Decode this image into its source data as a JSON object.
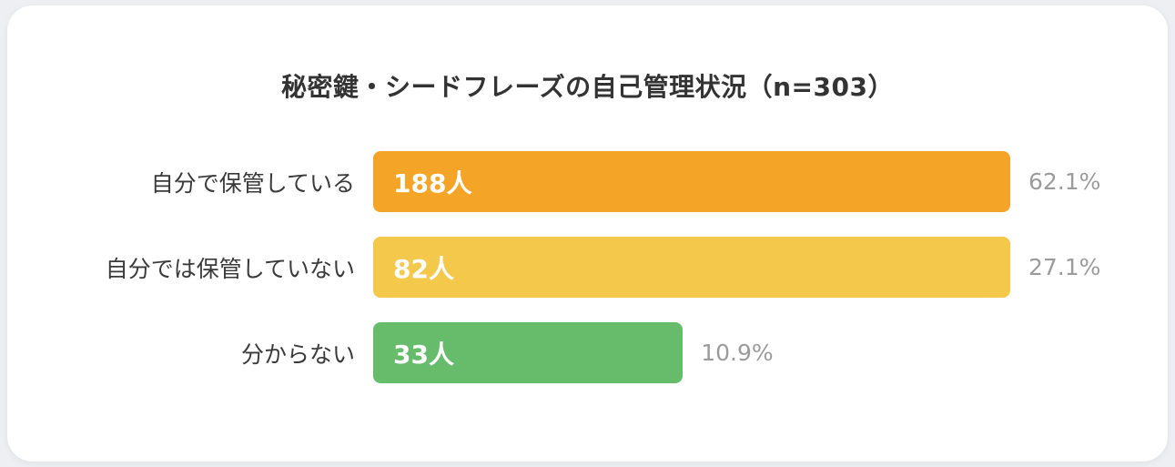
{
  "title": "秘密鍵・シードフレーズの自己管理状況（n=303）",
  "colors": {
    "page_background": "#EDEFF2",
    "card_background": "#FFFFFF",
    "title_text": "#333333",
    "category_text": "#3A3A3A",
    "value_text": "#FFFFFF",
    "percent_text": "#9B9B9B",
    "bar_orange": "#F4A426",
    "bar_yellow": "#F3C84B",
    "bar_green": "#66BC6B"
  },
  "chart_data": {
    "type": "bar",
    "orientation": "horizontal",
    "title": "秘密鍵・シードフレーズの自己管理状況（n=303）",
    "sample_size": 303,
    "categories": [
      "自分で保管している",
      "自分では保管していない",
      "分からない"
    ],
    "values": [
      188,
      82,
      33
    ],
    "percents": [
      62.1,
      27.1,
      10.9
    ],
    "legend": "none",
    "grid": "off",
    "axes_labels": "none",
    "rows": [
      {
        "category": "自分で保管している",
        "value": 188,
        "value_label": "188人",
        "percent": 62.1,
        "percent_label": "62.1%",
        "color": "#F4A426",
        "bar_width_pct": 100
      },
      {
        "category": "自分では保管していない",
        "value": 82,
        "value_label": "82人",
        "percent": 27.1,
        "percent_label": "27.1%",
        "color": "#F3C84B",
        "bar_width_pct": 100
      },
      {
        "category": "分からない",
        "value": 33,
        "value_label": "33人",
        "percent": 10.9,
        "percent_label": "10.9%",
        "color": "#66BC6B",
        "bar_width_pct": 48.6
      }
    ]
  }
}
